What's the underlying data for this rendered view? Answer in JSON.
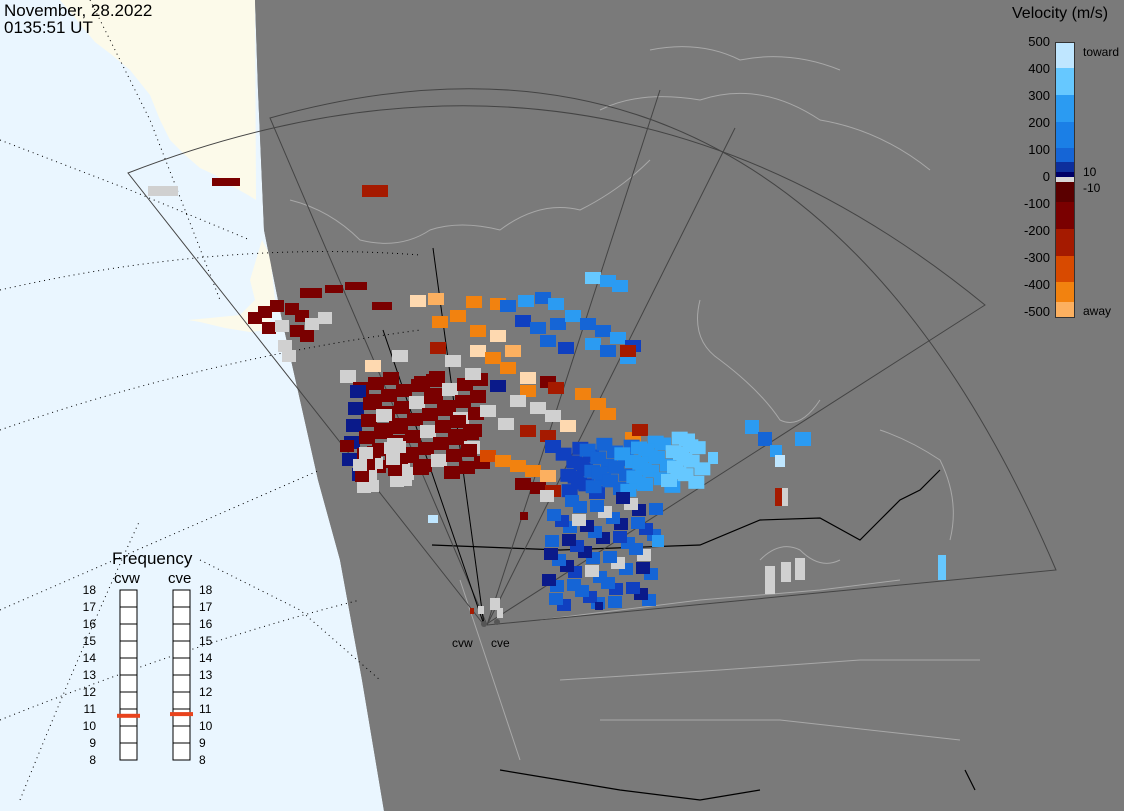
{
  "timestamp": {
    "date": "November, 28.2022",
    "time": "0135:51 UT"
  },
  "colorbar": {
    "title": "Velocity (m/s)",
    "ticks": [
      "500",
      "400",
      "300",
      "200",
      "100",
      "0",
      "-100",
      "-200",
      "-300",
      "-400",
      "-500"
    ],
    "toward_label": "toward",
    "away_label": "away",
    "inner_pos": "10",
    "inner_neg": "-10",
    "colors": [
      "#bfe6ff",
      "#66c8ff",
      "#2b9bf2",
      "#1565d6",
      "#0d2f9c",
      "#000066",
      "#d8d8d8",
      "#7a0000",
      "#a51a00",
      "#d84a00",
      "#f2820f",
      "#fcb060",
      "#fed9b0"
    ]
  },
  "frequency": {
    "title": "Frequency",
    "levels": [
      "18",
      "17",
      "16",
      "15",
      "14",
      "13",
      "12",
      "11",
      "10",
      "9",
      "8"
    ],
    "radars": [
      {
        "name": "cvw",
        "value_mhz": 10.6,
        "marker_color": "#e8431d"
      },
      {
        "name": "cve",
        "value_mhz": 10.7,
        "marker_color": "#e8431d"
      }
    ]
  },
  "radar_sites": [
    {
      "name": "cvw"
    },
    {
      "name": "cve"
    }
  ],
  "map_colors": {
    "ocean": "#eaf6ff",
    "land_fill": "#fcfaea",
    "night": "#7a7a7a",
    "border": "#000000",
    "coast": "#a8a8a8"
  }
}
